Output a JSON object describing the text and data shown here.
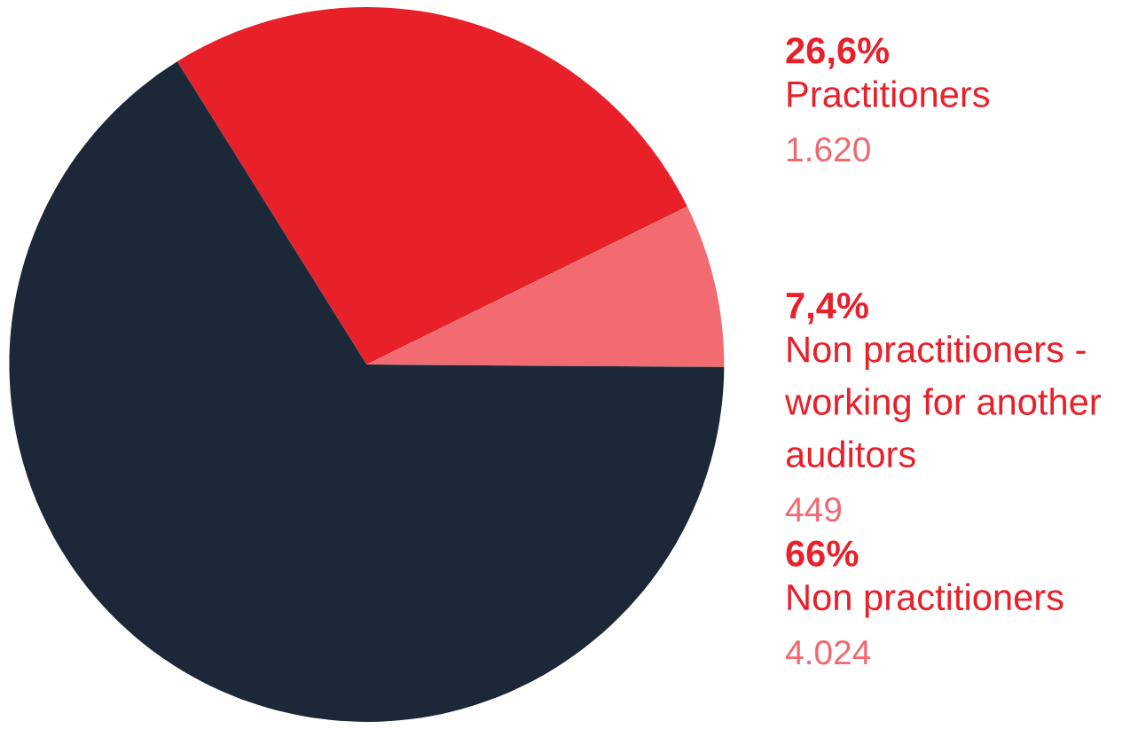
{
  "chart_data": {
    "type": "pie",
    "categories": [
      "Practitioners",
      "Non practitioners - working for another auditors",
      "Non practitioners"
    ],
    "values": [
      26.6,
      7.4,
      66
    ],
    "value_labels": [
      "26,6%",
      "7,4%",
      "66%"
    ],
    "colors": [
      "#e8202a",
      "#f26b70",
      "#1c2838"
    ],
    "annotations": [
      "1.620",
      "449",
      "4.024"
    ],
    "legend": false
  }
}
